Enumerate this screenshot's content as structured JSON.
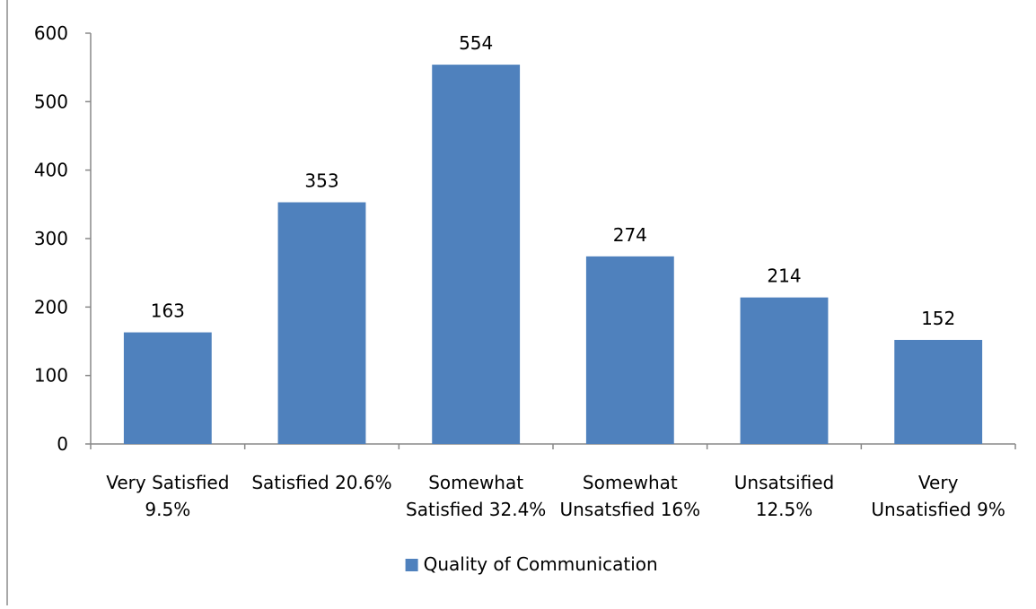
{
  "chart_data": {
    "type": "bar",
    "title": "",
    "xlabel": "",
    "ylabel": "",
    "categories": [
      [
        "Very Satisfied",
        "9.5%"
      ],
      [
        "Satisfied 20.6%"
      ],
      [
        "Somewhat",
        "Satisfied 32.4%"
      ],
      [
        "Somewhat",
        "Unsatsfied 16%"
      ],
      [
        "Unsatsified",
        "12.5%"
      ],
      [
        "Very",
        "Unsatisfied 9%"
      ]
    ],
    "series": [
      {
        "name": "Quality of Communication",
        "color": "#4f81bd",
        "values": [
          163,
          353,
          554,
          274,
          214,
          152
        ]
      }
    ],
    "ylim": [
      0,
      600
    ],
    "yticks": [
      0,
      100,
      200,
      300,
      400,
      500,
      600
    ],
    "data_labels": true,
    "grid": false,
    "legend_position": "bottom"
  }
}
